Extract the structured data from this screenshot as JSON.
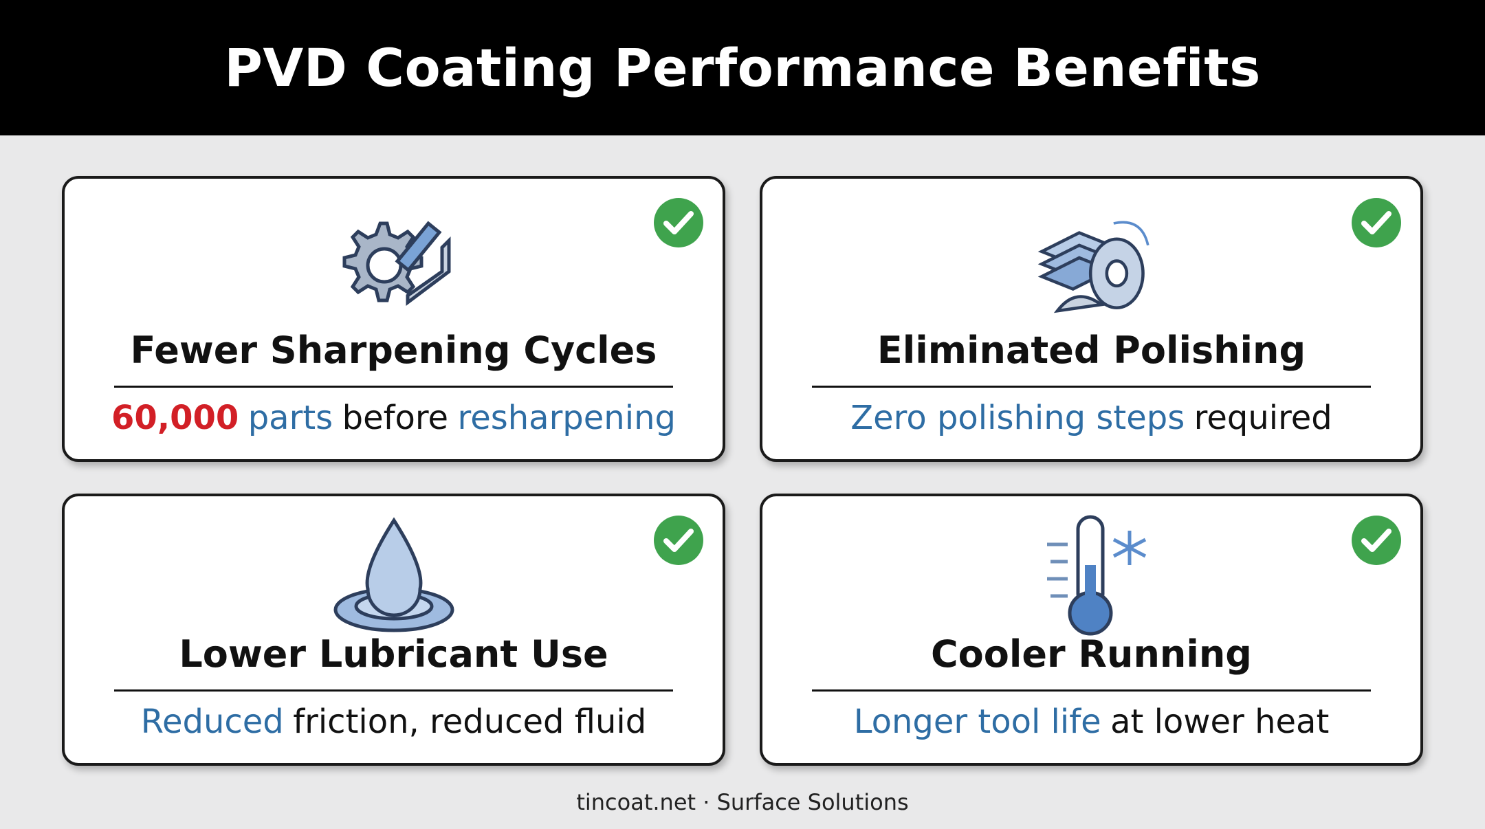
{
  "header": {
    "title": "PVD Coating Performance Benefits"
  },
  "cards": [
    {
      "title": "Fewer Sharpening Cycles",
      "description": [
        {
          "text": "60,000",
          "color": "#d21f26",
          "bold": true
        },
        {
          "text": "parts",
          "color": "#2e6da4"
        },
        {
          "text": "before",
          "color": "#111111"
        },
        {
          "text": "resharpening",
          "color": "#2e6da4"
        }
      ]
    },
    {
      "title": "Eliminated Polishing",
      "description": [
        {
          "text": "Zero polishing steps",
          "color": "#2e6da4"
        },
        {
          "text": "required",
          "color": "#111111"
        }
      ]
    },
    {
      "title": "Lower Lubricant Use",
      "description": [
        {
          "text": "Reduced",
          "color": "#2e6da4"
        },
        {
          "text": "friction, reduced fluid",
          "color": "#111111"
        }
      ]
    },
    {
      "title": "Cooler Running",
      "description": [
        {
          "text": "Longer tool life",
          "color": "#2e6da4"
        },
        {
          "text": "at lower heat",
          "color": "#111111"
        }
      ]
    }
  ],
  "footer": {
    "text": "tincoat.net · Surface Solutions"
  }
}
